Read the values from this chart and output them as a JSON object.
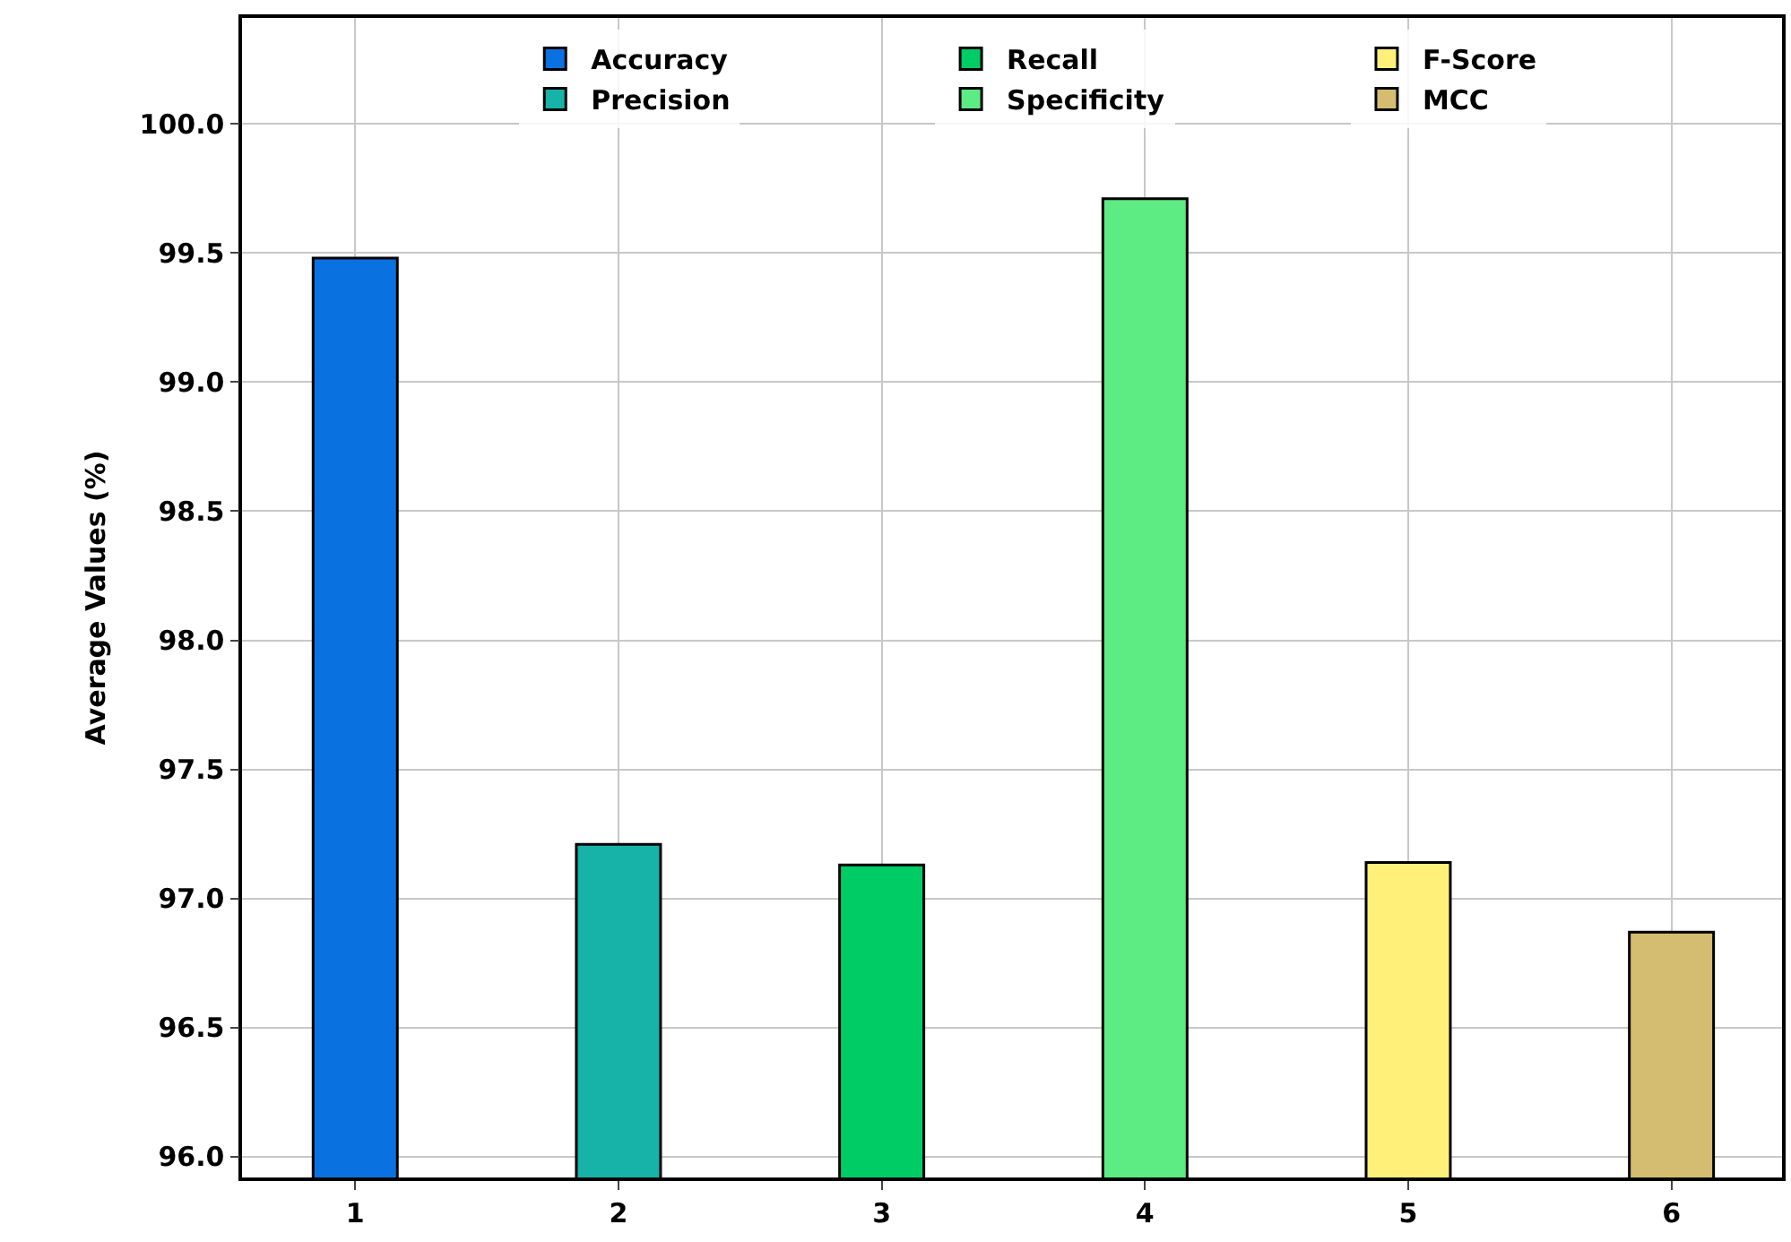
{
  "chart_data": {
    "type": "bar",
    "ylabel": "Average Values (%)",
    "series": [
      {
        "name": "Accuracy",
        "color": "#0a72e0",
        "x": [
          1
        ],
        "values": [
          99.48
        ]
      },
      {
        "name": "Precision",
        "color": "#17b3a8",
        "x": [
          2
        ],
        "values": [
          97.21
        ]
      },
      {
        "name": "Recall",
        "color": "#00cc66",
        "x": [
          3
        ],
        "values": [
          97.13
        ]
      },
      {
        "name": "Specificity",
        "color": "#5deb84",
        "x": [
          4
        ],
        "values": [
          99.71
        ]
      },
      {
        "name": "F-Score",
        "color": "#fff07a",
        "x": [
          5
        ],
        "values": [
          97.14
        ]
      },
      {
        "name": "MCC",
        "color": "#d4bd70",
        "x": [
          6
        ],
        "values": [
          96.87
        ]
      }
    ],
    "xlim": [
      0.57,
      6.42
    ],
    "xticks": [
      1,
      2,
      3,
      4,
      5,
      6
    ],
    "ylim": [
      95.92,
      100.41
    ],
    "yticks": [
      {
        "value": 96,
        "label": "96.0"
      },
      {
        "value": 96.5,
        "label": "96.5"
      },
      {
        "value": 97,
        "label": "97.0"
      },
      {
        "value": 97.5,
        "label": "97.5"
      },
      {
        "value": 98,
        "label": "98.0"
      },
      {
        "value": 98.5,
        "label": "98.5"
      },
      {
        "value": 99,
        "label": "99.0"
      },
      {
        "value": 99.5,
        "label": "99.5"
      },
      {
        "value": 100,
        "label": "100.0"
      }
    ],
    "grid": true,
    "legend": "top right"
  }
}
